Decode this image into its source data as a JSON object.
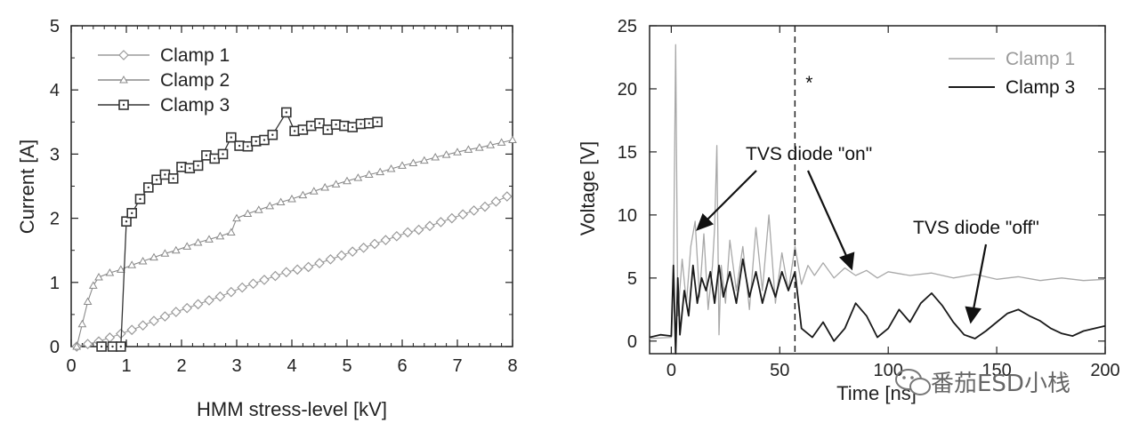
{
  "chart_data": [
    {
      "type": "line",
      "xlabel": "HMM stress-level [kV]",
      "ylabel": "Current [A]",
      "xlim": [
        0,
        8
      ],
      "ylim": [
        0,
        5
      ],
      "xticks": [
        "0",
        "1",
        "2",
        "3",
        "4",
        "5",
        "6",
        "7",
        "8"
      ],
      "yticks": [
        "0",
        "1",
        "2",
        "3",
        "4",
        "5"
      ],
      "legend_position": "top-left",
      "series": [
        {
          "name": "Clamp 1",
          "marker": "diamond",
          "color": "#9a9a9a",
          "x": [
            0.1,
            0.3,
            0.5,
            0.7,
            0.9,
            1.1,
            1.3,
            1.5,
            1.7,
            1.9,
            2.1,
            2.3,
            2.5,
            2.7,
            2.9,
            3.1,
            3.3,
            3.5,
            3.7,
            3.9,
            4.1,
            4.3,
            4.5,
            4.7,
            4.9,
            5.1,
            5.3,
            5.5,
            5.7,
            5.9,
            6.1,
            6.3,
            6.5,
            6.7,
            6.9,
            7.1,
            7.3,
            7.5,
            7.7,
            7.9
          ],
          "y": [
            0.0,
            0.04,
            0.08,
            0.14,
            0.2,
            0.26,
            0.33,
            0.4,
            0.47,
            0.54,
            0.6,
            0.66,
            0.72,
            0.78,
            0.85,
            0.92,
            0.98,
            1.04,
            1.1,
            1.16,
            1.2,
            1.24,
            1.3,
            1.36,
            1.42,
            1.48,
            1.54,
            1.6,
            1.66,
            1.72,
            1.78,
            1.82,
            1.88,
            1.94,
            2.0,
            2.06,
            2.12,
            2.18,
            2.26,
            2.34
          ]
        },
        {
          "name": "Clamp 2",
          "marker": "triangle",
          "color": "#8a8a8a",
          "x": [
            0.1,
            0.2,
            0.3,
            0.4,
            0.5,
            0.7,
            0.9,
            1.1,
            1.3,
            1.5,
            1.7,
            1.9,
            2.1,
            2.3,
            2.5,
            2.7,
            2.9,
            3.0,
            3.2,
            3.4,
            3.6,
            3.8,
            4.0,
            4.2,
            4.4,
            4.6,
            4.8,
            5.0,
            5.2,
            5.4,
            5.6,
            5.8,
            6.0,
            6.2,
            6.4,
            6.6,
            6.8,
            7.0,
            7.2,
            7.4,
            7.6,
            7.8,
            8.0
          ],
          "y": [
            0.0,
            0.35,
            0.7,
            0.95,
            1.08,
            1.15,
            1.2,
            1.27,
            1.33,
            1.39,
            1.45,
            1.5,
            1.56,
            1.62,
            1.67,
            1.72,
            1.78,
            2.0,
            2.07,
            2.13,
            2.19,
            2.25,
            2.3,
            2.36,
            2.42,
            2.48,
            2.53,
            2.58,
            2.63,
            2.68,
            2.72,
            2.77,
            2.82,
            2.86,
            2.9,
            2.95,
            2.99,
            3.03,
            3.07,
            3.1,
            3.14,
            3.18,
            3.22
          ]
        },
        {
          "name": "Clamp 3",
          "marker": "square",
          "color": "#333333",
          "x": [
            0.55,
            0.75,
            0.9,
            1.0,
            1.1,
            1.25,
            1.4,
            1.55,
            1.7,
            1.85,
            2.0,
            2.15,
            2.3,
            2.45,
            2.6,
            2.75,
            2.9,
            3.05,
            3.2,
            3.35,
            3.5,
            3.65,
            3.9,
            4.05,
            4.2,
            4.35,
            4.5,
            4.65,
            4.8,
            4.95,
            5.1,
            5.25,
            5.4,
            5.55
          ],
          "y": [
            0.0,
            0.0,
            0.0,
            1.95,
            2.08,
            2.3,
            2.48,
            2.6,
            2.68,
            2.62,
            2.8,
            2.78,
            2.82,
            2.98,
            2.93,
            3.0,
            3.26,
            3.13,
            3.12,
            3.2,
            3.22,
            3.3,
            3.65,
            3.36,
            3.38,
            3.44,
            3.48,
            3.38,
            3.46,
            3.44,
            3.42,
            3.47,
            3.48,
            3.5
          ]
        }
      ]
    },
    {
      "type": "line",
      "xlabel": "Time [ns]",
      "ylabel": "Voltage [V]",
      "xlim": [
        -10,
        200
      ],
      "ylim": [
        -1,
        25
      ],
      "xticks": [
        "0",
        "50",
        "100",
        "150",
        "200"
      ],
      "yticks": [
        "0",
        "5",
        "10",
        "15",
        "20",
        "25"
      ],
      "legend_position": "top-right",
      "vline_x": 57,
      "vline_label": "*",
      "series": [
        {
          "name": "Clamp 1",
          "color": "#a8a8a8",
          "x": [
            -10,
            0,
            1,
            2,
            3,
            5,
            7,
            9,
            11,
            13,
            15,
            17,
            19,
            20,
            21,
            22,
            23,
            25,
            27,
            30,
            33,
            36,
            39,
            42,
            45,
            48,
            51,
            54,
            57,
            60,
            63,
            66,
            70,
            75,
            80,
            85,
            90,
            95,
            100,
            110,
            120,
            130,
            140,
            150,
            160,
            170,
            180,
            190,
            200
          ],
          "y": [
            0.2,
            0.3,
            5.0,
            23.5,
            2.0,
            6.5,
            3.0,
            7.5,
            9.5,
            3.5,
            8.5,
            2.5,
            6.0,
            9.0,
            15.5,
            0.5,
            6.0,
            3.0,
            8.0,
            4.0,
            7.5,
            2.5,
            9.0,
            4.0,
            10.0,
            3.0,
            7.0,
            4.0,
            7.5,
            4.5,
            6.0,
            5.2,
            6.2,
            5.0,
            5.8,
            5.2,
            5.6,
            5.0,
            5.5,
            5.2,
            5.4,
            5.0,
            5.3,
            4.9,
            5.1,
            4.8,
            5.0,
            4.8,
            4.9
          ]
        },
        {
          "name": "Clamp 3",
          "color": "#1a1a1a",
          "x": [
            -10,
            -5,
            0,
            1,
            2,
            3,
            4,
            6,
            8,
            10,
            12,
            14,
            16,
            18,
            20,
            22,
            24,
            27,
            30,
            33,
            36,
            39,
            42,
            45,
            48,
            51,
            54,
            57,
            60,
            65,
            70,
            75,
            80,
            85,
            90,
            95,
            100,
            105,
            110,
            115,
            120,
            125,
            130,
            135,
            140,
            145,
            150,
            155,
            160,
            165,
            170,
            175,
            180,
            185,
            190,
            195,
            200
          ],
          "y": [
            0.3,
            0.5,
            0.4,
            6.0,
            -1.0,
            5.0,
            0.5,
            4.0,
            2.0,
            6.0,
            3.0,
            5.0,
            4.0,
            5.5,
            3.0,
            6.0,
            3.5,
            5.5,
            3.0,
            6.5,
            3.5,
            5.5,
            3.0,
            5.0,
            3.5,
            5.5,
            4.0,
            5.5,
            1.0,
            0.3,
            1.5,
            0.0,
            1.0,
            3.0,
            2.0,
            0.3,
            1.0,
            2.5,
            1.5,
            3.0,
            3.8,
            2.8,
            1.5,
            0.5,
            0.2,
            0.8,
            1.5,
            2.2,
            2.5,
            2.0,
            1.6,
            1.0,
            0.6,
            0.4,
            0.8,
            1.0,
            1.2
          ]
        }
      ]
    }
  ],
  "annotations": {
    "on_text": "TVS diode \"on\"",
    "off_text": "TVS diode \"off\"",
    "watermark": "番茄ESD小栈"
  }
}
